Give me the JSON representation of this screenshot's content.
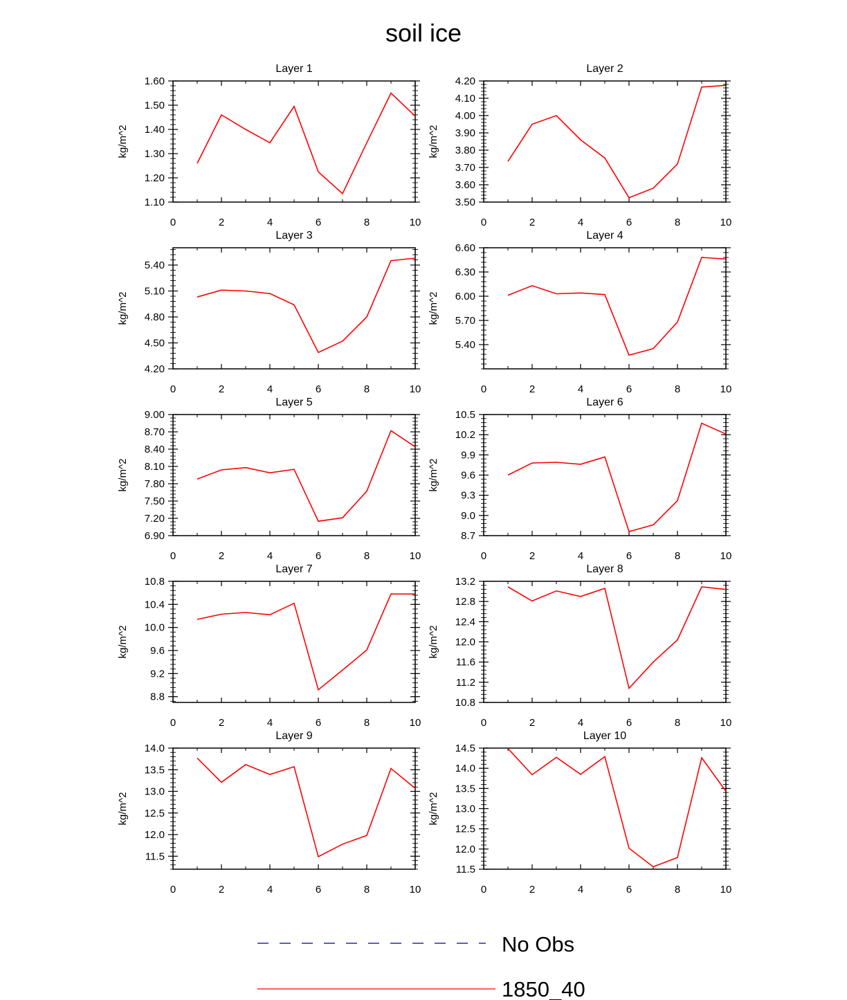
{
  "title": "soil ice",
  "legend": [
    {
      "label": "No Obs",
      "color": "#00007f",
      "dash": true
    },
    {
      "label": "1850_40",
      "color": "#ff0000",
      "dash": false
    }
  ],
  "chart_data": [
    {
      "type": "line",
      "title": "Layer 1",
      "ylabel": "kg/m^2",
      "xlim": [
        0,
        10
      ],
      "ylim": [
        1.1,
        1.6
      ],
      "xticks": [
        "0",
        "2",
        "4",
        "6",
        "8",
        "10"
      ],
      "yticks": [
        "1.10",
        "1.20",
        "1.30",
        "1.40",
        "1.50",
        "1.60"
      ],
      "x": [
        1,
        2,
        3,
        4,
        5,
        6,
        7,
        8,
        9,
        10
      ],
      "series": [
        {
          "name": "1850_40",
          "values": [
            1.26,
            1.46,
            1.4,
            1.345,
            1.495,
            1.225,
            1.135,
            1.345,
            1.55,
            1.455
          ]
        }
      ]
    },
    {
      "type": "line",
      "title": "Layer 2",
      "ylabel": "kg/m^2",
      "xlim": [
        0,
        10
      ],
      "ylim": [
        3.5,
        4.2
      ],
      "xticks": [
        "0",
        "2",
        "4",
        "6",
        "8",
        "10"
      ],
      "yticks": [
        "3.50",
        "3.60",
        "3.70",
        "3.80",
        "3.90",
        "4.00",
        "4.10",
        "4.20"
      ],
      "x": [
        1,
        2,
        3,
        4,
        5,
        6,
        7,
        8,
        9,
        10
      ],
      "series": [
        {
          "name": "1850_40",
          "values": [
            3.735,
            3.95,
            4.0,
            3.86,
            3.755,
            3.525,
            3.58,
            3.72,
            4.165,
            4.175
          ]
        }
      ]
    },
    {
      "type": "line",
      "title": "Layer 3",
      "ylabel": "kg/m^2",
      "xlim": [
        0,
        10
      ],
      "ylim": [
        4.2,
        5.6
      ],
      "xticks": [
        "0",
        "2",
        "4",
        "6",
        "8",
        "10"
      ],
      "yticks": [
        "4.20",
        "4.50",
        "4.80",
        "5.10",
        "5.40"
      ],
      "x": [
        1,
        2,
        3,
        4,
        5,
        6,
        7,
        8,
        9,
        10
      ],
      "series": [
        {
          "name": "1850_40",
          "values": [
            5.03,
            5.11,
            5.1,
            5.07,
            4.94,
            4.39,
            4.52,
            4.8,
            5.45,
            5.48
          ]
        }
      ]
    },
    {
      "type": "line",
      "title": "Layer 4",
      "ylabel": "kg/m^2",
      "xlim": [
        0,
        10
      ],
      "ylim": [
        5.1,
        6.6
      ],
      "xticks": [
        "0",
        "2",
        "4",
        "6",
        "8",
        "10"
      ],
      "yticks": [
        "5.40",
        "5.70",
        "6.00",
        "6.30",
        "6.60"
      ],
      "x": [
        1,
        2,
        3,
        4,
        5,
        6,
        7,
        8,
        9,
        10
      ],
      "series": [
        {
          "name": "1850_40",
          "values": [
            6.01,
            6.13,
            6.03,
            6.04,
            6.02,
            5.27,
            5.35,
            5.68,
            6.48,
            6.46
          ]
        }
      ]
    },
    {
      "type": "line",
      "title": "Layer 5",
      "ylabel": "kg/m^2",
      "xlim": [
        0,
        10
      ],
      "ylim": [
        6.9,
        9.0
      ],
      "xticks": [
        "0",
        "2",
        "4",
        "6",
        "8",
        "10"
      ],
      "yticks": [
        "6.90",
        "7.20",
        "7.50",
        "7.80",
        "8.10",
        "8.40",
        "8.70",
        "9.00"
      ],
      "x": [
        1,
        2,
        3,
        4,
        5,
        6,
        7,
        8,
        9,
        10
      ],
      "series": [
        {
          "name": "1850_40",
          "values": [
            7.88,
            8.04,
            8.08,
            7.99,
            8.05,
            7.15,
            7.21,
            7.67,
            8.72,
            8.44
          ]
        }
      ]
    },
    {
      "type": "line",
      "title": "Layer 6",
      "ylabel": "kg/m^2",
      "xlim": [
        0,
        10
      ],
      "ylim": [
        8.7,
        10.5
      ],
      "xticks": [
        "0",
        "2",
        "4",
        "6",
        "8",
        "10"
      ],
      "yticks": [
        "8.7",
        "9.0",
        "9.3",
        "9.6",
        "9.9",
        "10.2",
        "10.5"
      ],
      "x": [
        1,
        2,
        3,
        4,
        5,
        6,
        7,
        8,
        9,
        10
      ],
      "series": [
        {
          "name": "1850_40",
          "values": [
            9.6,
            9.78,
            9.79,
            9.76,
            9.87,
            8.76,
            8.86,
            9.22,
            10.37,
            10.21
          ]
        }
      ]
    },
    {
      "type": "line",
      "title": "Layer 7",
      "ylabel": "kg/m^2",
      "xlim": [
        0,
        10
      ],
      "ylim": [
        8.7,
        10.8
      ],
      "xticks": [
        "0",
        "2",
        "4",
        "6",
        "8",
        "10"
      ],
      "yticks": [
        "8.8",
        "9.2",
        "9.6",
        "10.0",
        "10.4",
        "10.8"
      ],
      "x": [
        1,
        2,
        3,
        4,
        5,
        6,
        7,
        8,
        9,
        10
      ],
      "series": [
        {
          "name": "1850_40",
          "values": [
            10.14,
            10.23,
            10.26,
            10.22,
            10.42,
            8.92,
            9.26,
            9.61,
            10.58,
            10.58
          ]
        }
      ]
    },
    {
      "type": "line",
      "title": "Layer 8",
      "ylabel": "kg/m^2",
      "xlim": [
        0,
        10
      ],
      "ylim": [
        10.8,
        13.2
      ],
      "xticks": [
        "0",
        "2",
        "4",
        "6",
        "8",
        "10"
      ],
      "yticks": [
        "10.8",
        "11.2",
        "11.6",
        "12.0",
        "12.4",
        "12.8",
        "13.2"
      ],
      "x": [
        1,
        2,
        3,
        4,
        5,
        6,
        7,
        8,
        9,
        10
      ],
      "series": [
        {
          "name": "1850_40",
          "values": [
            13.09,
            12.81,
            13.01,
            12.9,
            13.06,
            11.08,
            11.6,
            12.04,
            13.09,
            13.04
          ]
        }
      ]
    },
    {
      "type": "line",
      "title": "Layer 9",
      "ylabel": "kg/m^2",
      "xlim": [
        0,
        10
      ],
      "ylim": [
        11.2,
        14.0
      ],
      "xticks": [
        "0",
        "2",
        "4",
        "6",
        "8",
        "10"
      ],
      "yticks": [
        "11.5",
        "12.0",
        "12.5",
        "13.0",
        "13.5",
        "14.0"
      ],
      "x": [
        1,
        2,
        3,
        4,
        5,
        6,
        7,
        8,
        9,
        10
      ],
      "series": [
        {
          "name": "1850_40",
          "values": [
            13.77,
            13.21,
            13.62,
            13.39,
            13.57,
            11.49,
            11.78,
            11.98,
            13.53,
            13.07
          ]
        }
      ]
    },
    {
      "type": "line",
      "title": "Layer 10",
      "ylabel": "kg/m^2",
      "xlim": [
        0,
        10
      ],
      "ylim": [
        11.5,
        14.5
      ],
      "xticks": [
        "0",
        "2",
        "4",
        "6",
        "8",
        "10"
      ],
      "yticks": [
        "11.5",
        "12.0",
        "12.5",
        "13.0",
        "13.5",
        "14.0",
        "14.5"
      ],
      "x": [
        1,
        2,
        3,
        4,
        5,
        6,
        7,
        8,
        9,
        10
      ],
      "series": [
        {
          "name": "1850_40",
          "values": [
            14.49,
            13.84,
            14.27,
            13.85,
            14.29,
            12.02,
            11.56,
            11.79,
            14.26,
            13.43
          ]
        }
      ]
    }
  ]
}
